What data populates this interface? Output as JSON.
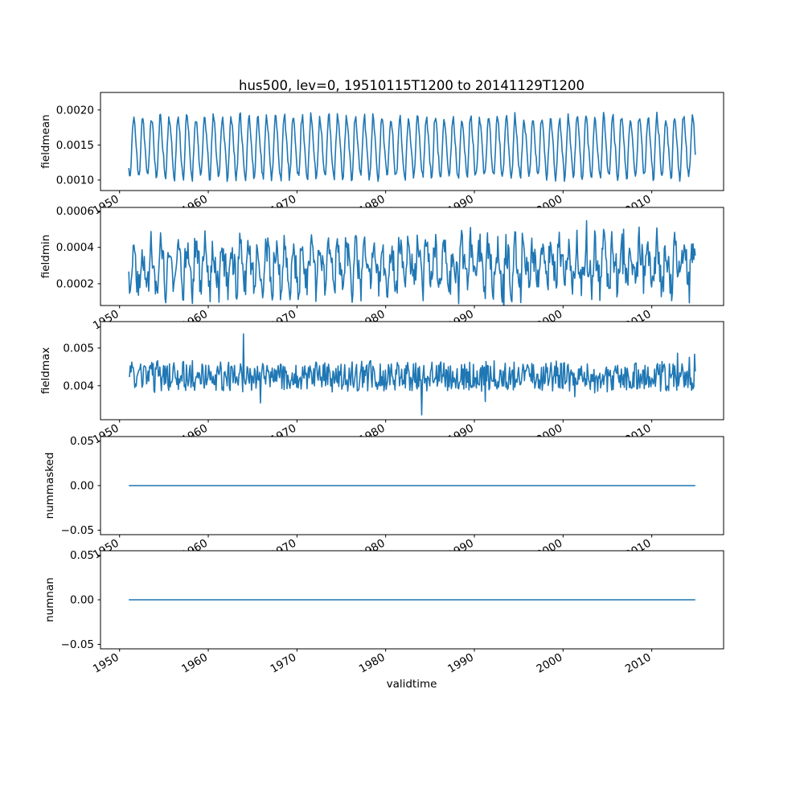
{
  "figure": {
    "title": "hus500, lev=0, 19510115T1200 to 20141129T1200",
    "xlabel": "validtime",
    "line_color": "#1f77b4",
    "background": "#ffffff",
    "x_axis": {
      "xlim": [
        1947.85,
        2018.1
      ],
      "ticks": [
        1950,
        1960,
        1970,
        1980,
        1990,
        2000,
        2010
      ],
      "tick_labels": [
        "1950",
        "1960",
        "1970",
        "1980",
        "1990",
        "2000",
        "2010"
      ]
    }
  },
  "chart_data": [
    {
      "type": "line",
      "name": "fieldmean",
      "ylabel": "fieldmean",
      "x_start": 1951.04,
      "x_end": 2014.91,
      "n_points": 767,
      "ylim": [
        0.00085,
        0.00225
      ],
      "yticks": [
        0.001,
        0.0015,
        0.002
      ],
      "ytick_labels": [
        "0.0010",
        "0.0015",
        "0.0020"
      ],
      "seed": 11,
      "signal": {
        "kind": "seasonal",
        "mean": 0.00147,
        "amp1": 0.00042,
        "amp2": 6e-05,
        "phase": 0.38,
        "noise": 7e-05,
        "spike_prob": 0,
        "spike": 0,
        "approx_min": 0.0009,
        "approx_max": 0.0021,
        "pattern": "annual cycle"
      }
    },
    {
      "type": "line",
      "name": "fieldmin",
      "ylabel": "fieldmin",
      "x_start": 1951.04,
      "x_end": 2014.91,
      "n_points": 767,
      "ylim": [
        8e-05,
        0.00062
      ],
      "yticks": [
        0.0002,
        0.0004,
        0.0006
      ],
      "ytick_labels": [
        "0.0002",
        "0.0004",
        "0.0006"
      ],
      "seed": 22,
      "signal": {
        "kind": "seasonal",
        "mean": 0.0003,
        "amp1": 0.0001,
        "amp2": 3e-05,
        "phase": 0.38,
        "noise": 0.0001,
        "spike_prob": 0.03,
        "spike": 0.00012,
        "approx_min": 0.0001,
        "approx_max": 0.0006,
        "pattern": "noisy annual cycle"
      }
    },
    {
      "type": "line",
      "name": "fieldmax",
      "ylabel": "fieldmax",
      "x_start": 1951.04,
      "x_end": 2014.91,
      "n_points": 767,
      "ylim": [
        0.0031,
        0.0057
      ],
      "yticks": [
        0.004,
        0.005
      ],
      "ytick_labels": [
        "0.004",
        "0.005"
      ],
      "seed": 33,
      "signal": {
        "kind": "seasonal",
        "mean": 0.00424,
        "amp1": 4e-05,
        "amp2": 2e-05,
        "phase": 0.1,
        "noise": 0.00038,
        "spike_prob": 0.02,
        "spike": 0.0009,
        "approx_min": 0.0033,
        "approx_max": 0.0056,
        "pattern": "irregular noise around 0.0042"
      }
    },
    {
      "type": "line",
      "name": "nummasked",
      "ylabel": "nummasked",
      "x_start": 1951.04,
      "x_end": 2014.91,
      "n_points": 767,
      "ylim": [
        -0.055,
        0.055
      ],
      "yticks": [
        -0.05,
        0.0,
        0.05
      ],
      "ytick_labels": [
        "−0.05",
        "0.00",
        "0.05"
      ],
      "seed": 44,
      "signal": {
        "kind": "constant",
        "value": 0.0,
        "pattern": "constant zero"
      }
    },
    {
      "type": "line",
      "name": "numnan",
      "ylabel": "numnan",
      "x_start": 1951.04,
      "x_end": 2014.91,
      "n_points": 767,
      "ylim": [
        -0.055,
        0.055
      ],
      "yticks": [
        -0.05,
        0.0,
        0.05
      ],
      "ytick_labels": [
        "−0.05",
        "0.00",
        "0.05"
      ],
      "seed": 55,
      "signal": {
        "kind": "constant",
        "value": 0.0,
        "pattern": "constant zero"
      }
    }
  ]
}
